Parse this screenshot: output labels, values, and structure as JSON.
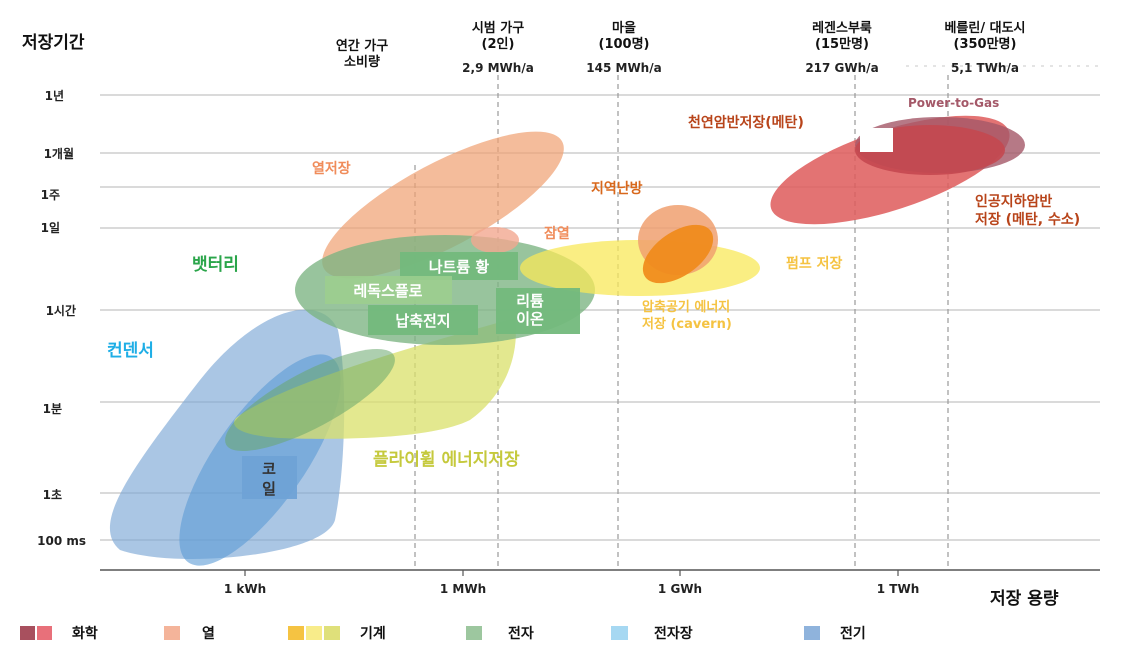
{
  "chart_data": {
    "type": "scatter",
    "ylabel": "저장기간",
    "xlabel": "저장 용량",
    "y_ticks": [
      "1년",
      "1개월",
      "1주",
      "1일",
      "1시간",
      "1분",
      "1초",
      "100 ms"
    ],
    "x_ticks": [
      "1 kWh",
      "1 MWh",
      "1 GWh",
      "1 TWh"
    ],
    "references": [
      {
        "name": "연간 가구\n소비량",
        "value": ""
      },
      {
        "name": "시범 가구\n(2인)",
        "value": "2,9 MWh/a"
      },
      {
        "name": "마을\n(100명)",
        "value": "145 MWh/a"
      },
      {
        "name": "레겐스부룩\n(15만명)",
        "value": "217 GWh/a"
      },
      {
        "name": "베를린/ 대도시\n(350만명)",
        "value": "5,1 TWh/a"
      }
    ],
    "technologies": [
      {
        "name": "컨덴서",
        "category": "전자장"
      },
      {
        "name": "코\n일",
        "category": "전기"
      },
      {
        "name": "플라이휠 에너지저장",
        "category": "기계"
      },
      {
        "name": "뱃터리",
        "category": "전자"
      },
      {
        "name": "나트륨 황",
        "category": "전자"
      },
      {
        "name": "레독스플로",
        "category": "전자"
      },
      {
        "name": "납축전지",
        "category": "전자"
      },
      {
        "name": "리튬\n이온",
        "category": "전자"
      },
      {
        "name": "열저장",
        "category": "열"
      },
      {
        "name": "잠열",
        "category": "열"
      },
      {
        "name": "지역난방",
        "category": "열"
      },
      {
        "name": "압축공기 에너지\n저장 (cavern)",
        "category": "기계"
      },
      {
        "name": "펌프 저장",
        "category": "기계"
      },
      {
        "name": "천연암반저장(메탄)",
        "category": "화학"
      },
      {
        "name": "Power-to-Gas",
        "category": "화학"
      },
      {
        "name": "인공지하암반\n저장 (메탄, 수소)",
        "category": "화학"
      }
    ],
    "legend": [
      {
        "label": "화학",
        "colors": [
          "#a8505e",
          "#e8707a"
        ]
      },
      {
        "label": "열",
        "colors": [
          "#f4b49a"
        ]
      },
      {
        "label": "기계",
        "colors": [
          "#f5c342",
          "#f8ec8a",
          "#dfe07a"
        ]
      },
      {
        "label": "전자",
        "colors": [
          "#9dc79f"
        ]
      },
      {
        "label": "전자장",
        "colors": [
          "#a6d8f2"
        ]
      },
      {
        "label": "전기",
        "colors": [
          "#8fb3dc"
        ]
      }
    ],
    "legend_position": "bottom",
    "grid": true
  }
}
